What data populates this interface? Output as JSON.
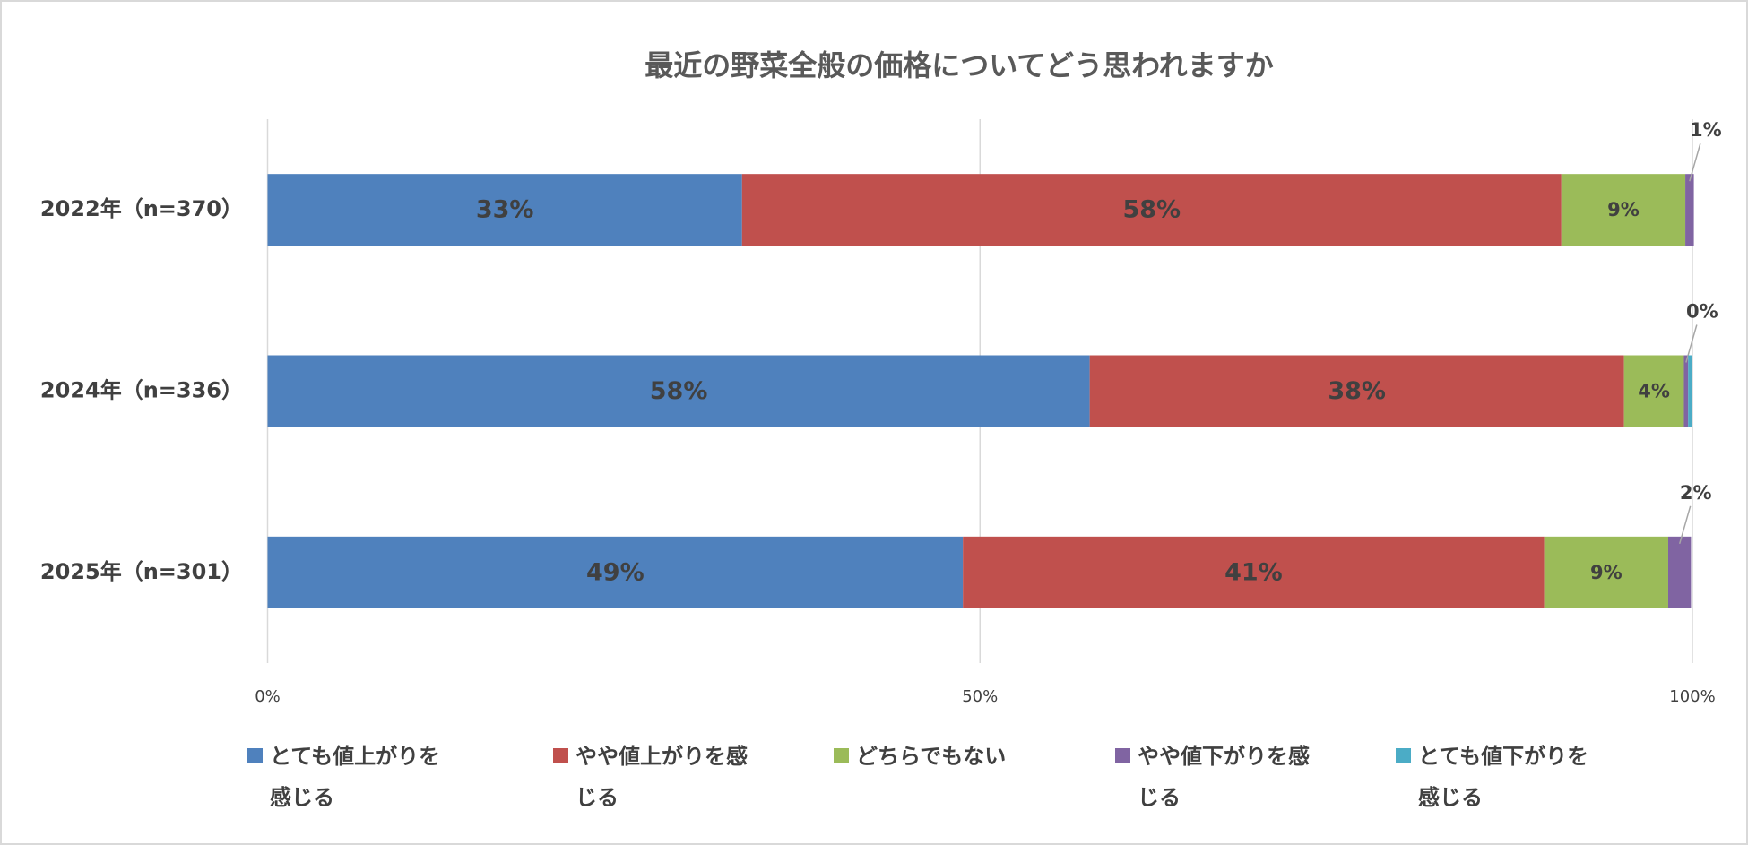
{
  "chart_data": {
    "type": "stacked-bar-horizontal",
    "title": "最近の野菜全般の価格についてどう思われますか",
    "categories": [
      "2022年（n=370）",
      "2024年（n=336）",
      "2025年（n=301）"
    ],
    "series": [
      {
        "name": "とても値上がりを感じる",
        "color": "#4f81bd",
        "values": [
          33.3,
          57.7,
          48.8
        ],
        "value_labels": [
          "33%",
          "58%",
          "49%"
        ]
      },
      {
        "name": "やや値上がりを感じる",
        "color": "#c0504d",
        "values": [
          57.5,
          37.5,
          40.8
        ],
        "value_labels": [
          "58%",
          "38%",
          "41%"
        ]
      },
      {
        "name": "どちらでもない",
        "color": "#9bbb59",
        "values": [
          8.7,
          4.2,
          8.7
        ],
        "value_labels": [
          "9%",
          "4%",
          "9%"
        ]
      },
      {
        "name": "やや値下がりを感じる",
        "color": "#8064a2",
        "values": [
          0.6,
          0.3,
          1.6
        ],
        "value_labels": [
          "1%",
          "0%",
          "2%"
        ]
      },
      {
        "name": "とても値下がりを感じる",
        "color": "#4bacc6",
        "values": [
          0,
          0.3,
          0
        ],
        "value_labels": [
          null,
          null,
          null
        ]
      }
    ],
    "xlim": [
      0,
      100
    ],
    "xticks": [
      {
        "value": 0,
        "label": "0%"
      },
      {
        "value": 50,
        "label": "50%"
      },
      {
        "value": 100,
        "label": "100%"
      }
    ],
    "grid": true,
    "legend": "bottom"
  }
}
